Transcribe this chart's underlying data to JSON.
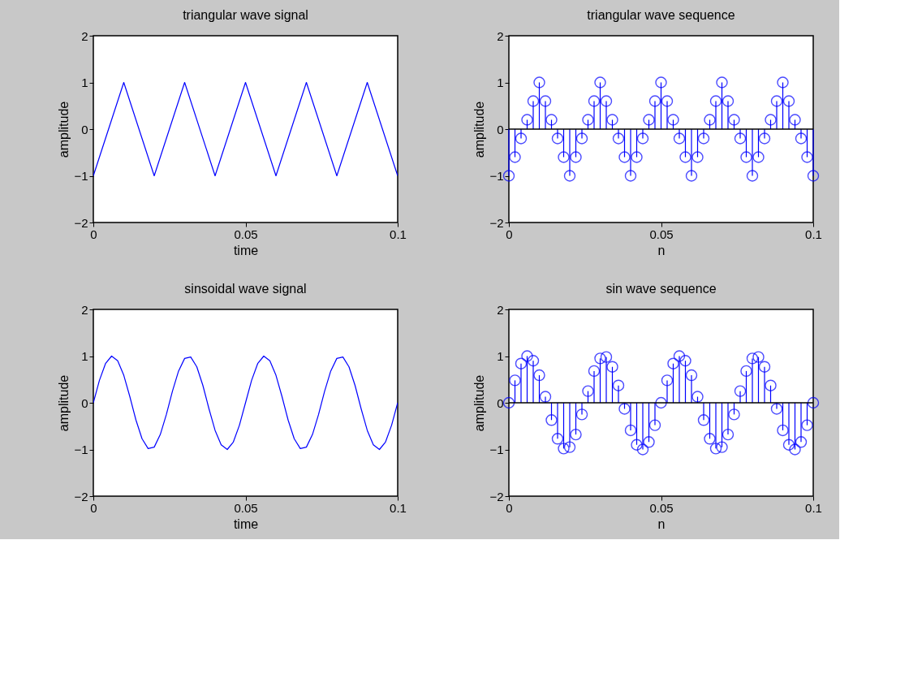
{
  "chart_data": [
    {
      "type": "line",
      "title": "triangular wave signal",
      "xlabel": "time",
      "ylabel": "amplitude",
      "xlim": [
        0,
        0.1
      ],
      "ylim": [
        -2,
        2
      ],
      "xticks": [
        0,
        0.05,
        0.1
      ],
      "yticks": [
        -2,
        -1,
        0,
        1,
        2
      ],
      "series": [
        {
          "color": "#0000ff",
          "x": [
            0,
            0.01,
            0.02,
            0.03,
            0.04,
            0.05,
            0.06,
            0.07,
            0.08,
            0.09,
            0.1
          ],
          "values": [
            -1,
            1,
            -1,
            1,
            -1,
            1,
            -1,
            1,
            -1,
            1,
            -1
          ]
        }
      ]
    },
    {
      "type": "lollipop",
      "title": "triangular wave sequence",
      "xlabel": "n",
      "ylabel": "amplitude",
      "xlim": [
        0,
        0.1
      ],
      "ylim": [
        -2,
        2
      ],
      "xticks": [
        0,
        0.05,
        0.1
      ],
      "yticks": [
        -2,
        -1,
        0,
        1,
        2
      ],
      "marker": "circle",
      "ref_lines": [
        {
          "axis": "y",
          "value": 0,
          "color": "#000000"
        }
      ],
      "series": [
        {
          "color": "#0000ff",
          "x": [
            0,
            0.002,
            0.004,
            0.006,
            0.008,
            0.01,
            0.012,
            0.014,
            0.016,
            0.018,
            0.02,
            0.022,
            0.024,
            0.026,
            0.028,
            0.03,
            0.032,
            0.034,
            0.036,
            0.038,
            0.04,
            0.042,
            0.044,
            0.046,
            0.048,
            0.05,
            0.052,
            0.054,
            0.056,
            0.058,
            0.06,
            0.062,
            0.064,
            0.066,
            0.068,
            0.07,
            0.072,
            0.074,
            0.076,
            0.078,
            0.08,
            0.082,
            0.084,
            0.086,
            0.088,
            0.09,
            0.092,
            0.094,
            0.096,
            0.098,
            0.1
          ],
          "values": [
            -1,
            -0.6,
            -0.2,
            0.2,
            0.6,
            1,
            0.6,
            0.2,
            -0.2,
            -0.6,
            -1,
            -0.6,
            -0.2,
            0.2,
            0.6,
            1,
            0.6,
            0.2,
            -0.2,
            -0.6,
            -1,
            -0.6,
            -0.2,
            0.2,
            0.6,
            1,
            0.6,
            0.2,
            -0.2,
            -0.6,
            -1,
            -0.6,
            -0.2,
            0.2,
            0.6,
            1,
            0.6,
            0.2,
            -0.2,
            -0.6,
            -1,
            -0.6,
            -0.2,
            0.2,
            0.6,
            1,
            0.6,
            0.2,
            -0.2,
            -0.6,
            -1
          ]
        }
      ]
    },
    {
      "type": "line",
      "title": "sinsoidal wave signal",
      "xlabel": "time",
      "ylabel": "amplitude",
      "xlim": [
        0,
        0.1
      ],
      "ylim": [
        -2,
        2
      ],
      "xticks": [
        0,
        0.05,
        0.1
      ],
      "yticks": [
        -2,
        -1,
        0,
        1,
        2
      ],
      "series": [
        {
          "color": "#0000ff",
          "x": [
            0,
            0.002,
            0.004,
            0.006,
            0.008,
            0.01,
            0.012,
            0.014,
            0.016,
            0.018,
            0.02,
            0.022,
            0.024,
            0.026,
            0.028,
            0.03,
            0.032,
            0.034,
            0.036,
            0.038,
            0.04,
            0.042,
            0.044,
            0.046,
            0.048,
            0.05,
            0.052,
            0.054,
            0.056,
            0.058,
            0.06,
            0.062,
            0.064,
            0.066,
            0.068,
            0.07,
            0.072,
            0.074,
            0.076,
            0.078,
            0.08,
            0.082,
            0.084,
            0.086,
            0.088,
            0.09,
            0.092,
            0.094,
            0.096,
            0.098,
            0.1
          ],
          "values": [
            0,
            0.48,
            0.84,
            1.0,
            0.9,
            0.59,
            0.13,
            -0.37,
            -0.77,
            -0.98,
            -0.95,
            -0.68,
            -0.25,
            0.25,
            0.68,
            0.95,
            0.98,
            0.77,
            0.37,
            -0.13,
            -0.59,
            -0.9,
            -1.0,
            -0.84,
            -0.48,
            0,
            0.48,
            0.84,
            1.0,
            0.9,
            0.59,
            0.13,
            -0.37,
            -0.77,
            -0.98,
            -0.95,
            -0.68,
            -0.25,
            0.25,
            0.68,
            0.95,
            0.98,
            0.77,
            0.37,
            -0.13,
            -0.59,
            -0.9,
            -1.0,
            -0.84,
            -0.48,
            0
          ]
        }
      ]
    },
    {
      "type": "lollipop",
      "title": "sin wave sequence",
      "xlabel": "n",
      "ylabel": "amplitude",
      "xlim": [
        0,
        0.1
      ],
      "ylim": [
        -2,
        2
      ],
      "xticks": [
        0,
        0.05,
        0.1
      ],
      "yticks": [
        -2,
        -1,
        0,
        1,
        2
      ],
      "marker": "circle",
      "ref_lines": [
        {
          "axis": "y",
          "value": 0,
          "color": "#000000"
        }
      ],
      "series": [
        {
          "color": "#0000ff",
          "x": [
            0,
            0.002,
            0.004,
            0.006,
            0.008,
            0.01,
            0.012,
            0.014,
            0.016,
            0.018,
            0.02,
            0.022,
            0.024,
            0.026,
            0.028,
            0.03,
            0.032,
            0.034,
            0.036,
            0.038,
            0.04,
            0.042,
            0.044,
            0.046,
            0.048,
            0.05,
            0.052,
            0.054,
            0.056,
            0.058,
            0.06,
            0.062,
            0.064,
            0.066,
            0.068,
            0.07,
            0.072,
            0.074,
            0.076,
            0.078,
            0.08,
            0.082,
            0.084,
            0.086,
            0.088,
            0.09,
            0.092,
            0.094,
            0.096,
            0.098,
            0.1
          ],
          "values": [
            0,
            0.48,
            0.84,
            1.0,
            0.9,
            0.59,
            0.13,
            -0.37,
            -0.77,
            -0.98,
            -0.95,
            -0.68,
            -0.25,
            0.25,
            0.68,
            0.95,
            0.98,
            0.77,
            0.37,
            -0.13,
            -0.59,
            -0.9,
            -1.0,
            -0.84,
            -0.48,
            0,
            0.48,
            0.84,
            1.0,
            0.9,
            0.59,
            0.13,
            -0.37,
            -0.77,
            -0.98,
            -0.95,
            -0.68,
            -0.25,
            0.25,
            0.68,
            0.95,
            0.98,
            0.77,
            0.37,
            -0.13,
            -0.59,
            -0.9,
            -1.0,
            -0.84,
            -0.48,
            0
          ]
        }
      ]
    }
  ]
}
